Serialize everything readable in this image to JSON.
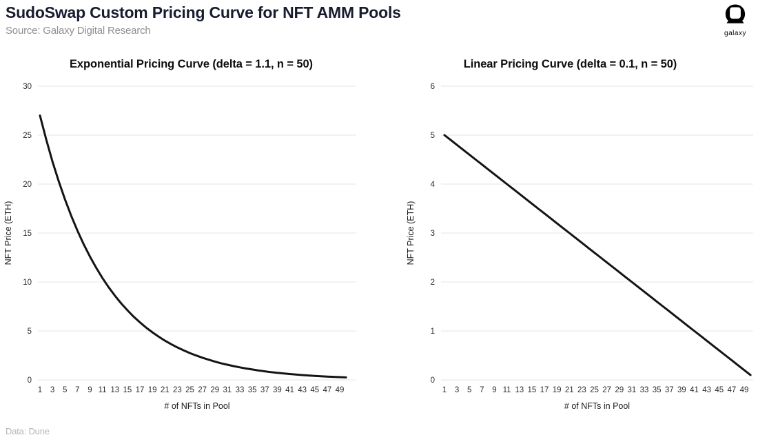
{
  "header": {
    "title": "SudoSwap Custom Pricing Curve for NFT AMM Pools",
    "source": "Source: Galaxy Digital Research",
    "logo_label": "galaxy"
  },
  "footer": {
    "note": "Data: Dune"
  },
  "colors": {
    "title": "#181c2f",
    "subtitle": "#8f8f8f",
    "chart_title": "#0e0e0e",
    "grid": "#ebebeb",
    "curve": "#141414",
    "tick_label": "#2d2d2d",
    "axis_label": "#1a1a1a",
    "footer_text": "#b5b5b5",
    "logo": "#000000",
    "background": "#ffffff"
  },
  "chart_data": [
    {
      "type": "line",
      "title": "Exponential Pricing Curve (delta = 1.1, n = 50)",
      "xlabel": "# of NFTs in Pool",
      "ylabel": "NFT Price (ETH)",
      "ylim": [
        0,
        30
      ],
      "yticks": [
        0,
        5,
        10,
        15,
        20,
        25,
        30
      ],
      "xticks": [
        1,
        3,
        5,
        7,
        9,
        11,
        13,
        15,
        17,
        19,
        21,
        23,
        25,
        27,
        29,
        31,
        33,
        35,
        37,
        39,
        41,
        43,
        45,
        47,
        49
      ],
      "xlim": [
        1,
        50
      ],
      "grid": true,
      "legend_position": "none",
      "series": [
        {
          "name": "NFT price (ETH)",
          "x": [
            1,
            2,
            3,
            4,
            5,
            6,
            7,
            8,
            9,
            10,
            11,
            12,
            13,
            14,
            15,
            16,
            17,
            18,
            19,
            20,
            21,
            22,
            23,
            24,
            25,
            26,
            27,
            28,
            29,
            30,
            31,
            32,
            33,
            34,
            35,
            36,
            37,
            38,
            39,
            40,
            41,
            42,
            43,
            44,
            45,
            46,
            47,
            48,
            49,
            50
          ],
          "values": [
            27.0,
            24.55,
            22.31,
            20.29,
            18.44,
            16.77,
            15.24,
            13.86,
            12.6,
            11.45,
            10.41,
            9.46,
            8.6,
            7.82,
            7.11,
            6.46,
            5.88,
            5.34,
            4.86,
            4.42,
            4.01,
            3.65,
            3.32,
            3.02,
            2.74,
            2.49,
            2.27,
            2.06,
            1.87,
            1.7,
            1.55,
            1.41,
            1.28,
            1.16,
            1.06,
            0.96,
            0.87,
            0.79,
            0.72,
            0.66,
            0.6,
            0.54,
            0.49,
            0.45,
            0.41,
            0.37,
            0.34,
            0.31,
            0.28,
            0.25
          ]
        }
      ]
    },
    {
      "type": "line",
      "title": "Linear Pricing Curve (delta = 0.1, n = 50)",
      "xlabel": "# of NFTs in Pool",
      "ylabel": "NFT Price (ETH)",
      "ylim": [
        0,
        6
      ],
      "yticks": [
        0,
        1,
        2,
        3,
        4,
        5,
        6
      ],
      "xticks": [
        1,
        3,
        5,
        7,
        9,
        11,
        13,
        15,
        17,
        19,
        21,
        23,
        25,
        27,
        29,
        31,
        33,
        35,
        37,
        39,
        41,
        43,
        45,
        47,
        49
      ],
      "xlim": [
        1,
        50
      ],
      "grid": true,
      "legend_position": "none",
      "series": [
        {
          "name": "NFT price (ETH)",
          "x": [
            1,
            2,
            3,
            4,
            5,
            6,
            7,
            8,
            9,
            10,
            11,
            12,
            13,
            14,
            15,
            16,
            17,
            18,
            19,
            20,
            21,
            22,
            23,
            24,
            25,
            26,
            27,
            28,
            29,
            30,
            31,
            32,
            33,
            34,
            35,
            36,
            37,
            38,
            39,
            40,
            41,
            42,
            43,
            44,
            45,
            46,
            47,
            48,
            49,
            50
          ],
          "values": [
            5.0,
            4.9,
            4.8,
            4.7,
            4.6,
            4.5,
            4.4,
            4.3,
            4.2,
            4.1,
            4.0,
            3.9,
            3.8,
            3.7,
            3.6,
            3.5,
            3.4,
            3.3,
            3.2,
            3.1,
            3.0,
            2.9,
            2.8,
            2.7,
            2.6,
            2.5,
            2.4,
            2.3,
            2.2,
            2.1,
            2.0,
            1.9,
            1.8,
            1.7,
            1.6,
            1.5,
            1.4,
            1.3,
            1.2,
            1.1,
            1.0,
            0.9,
            0.8,
            0.7,
            0.6,
            0.5,
            0.4,
            0.3,
            0.2,
            0.1
          ]
        }
      ]
    }
  ]
}
